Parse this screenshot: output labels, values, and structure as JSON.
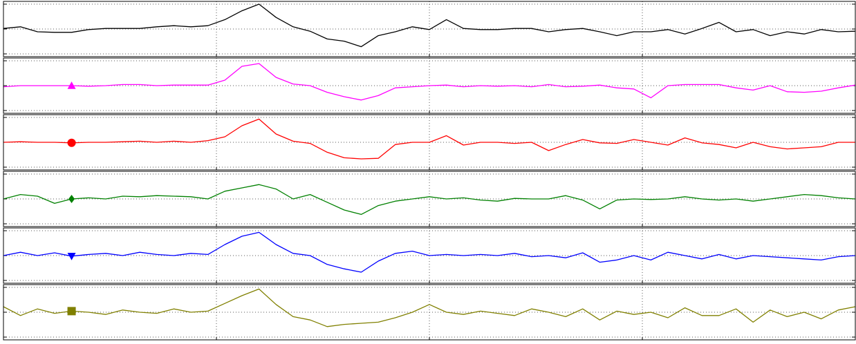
{
  "chart_data": [
    {
      "type": "line",
      "xlim": [
        0,
        100
      ],
      "xticks": [
        0,
        25,
        50,
        75,
        100
      ],
      "ylim": [
        0,
        10
      ],
      "yticks": [
        0.5,
        5,
        9.5
      ],
      "grid": true,
      "x": [
        0,
        2,
        4,
        6,
        8,
        10,
        12,
        14,
        16,
        18,
        20,
        22,
        24,
        26,
        28,
        30,
        32,
        34,
        36,
        38,
        40,
        42,
        44,
        46,
        48,
        50,
        52,
        54,
        56,
        58,
        60,
        62,
        64,
        66,
        68,
        70,
        72,
        74,
        76,
        78,
        80,
        82,
        84,
        86,
        88,
        90,
        92,
        94,
        96,
        98,
        100
      ],
      "series": [
        {
          "color": "#000000",
          "values": [
            5.1,
            5.4,
            4.5,
            4.4,
            4.4,
            4.9,
            5.1,
            5.1,
            5.1,
            5.4,
            5.6,
            5.4,
            5.6,
            6.7,
            8.3,
            9.5,
            7.1,
            5.4,
            4.6,
            3.2,
            2.8,
            1.8,
            3.8,
            4.5,
            5.4,
            4.9,
            6.7,
            5.1,
            4.9,
            4.9,
            5.1,
            5.1,
            4.5,
            4.9,
            5.1,
            4.5,
            3.8,
            4.5,
            4.5,
            4.9,
            4.1,
            5.1,
            6.2,
            4.5,
            4.9,
            3.8,
            4.5,
            4.1,
            4.9,
            4.5,
            4.6
          ]
        }
      ]
    },
    {
      "type": "line",
      "xlim": [
        0,
        100
      ],
      "xticks": [
        0,
        25,
        50,
        75,
        100
      ],
      "ylim": [
        0,
        10
      ],
      "yticks": [
        0.5,
        5,
        9.5
      ],
      "grid": true,
      "x": [
        0,
        2,
        4,
        6,
        8,
        10,
        12,
        14,
        16,
        18,
        20,
        22,
        24,
        26,
        28,
        30,
        32,
        34,
        36,
        38,
        40,
        42,
        44,
        46,
        48,
        50,
        52,
        54,
        56,
        58,
        60,
        62,
        64,
        66,
        68,
        70,
        72,
        74,
        76,
        78,
        80,
        82,
        84,
        86,
        88,
        90,
        92,
        94,
        96,
        98,
        100
      ],
      "marker_x": 8,
      "series": [
        {
          "color": "#ff00ff",
          "marker": "^",
          "values": [
            4.8,
            5.0,
            5.0,
            5.0,
            5.0,
            4.9,
            5.0,
            5.2,
            5.2,
            5.0,
            5.1,
            5.1,
            5.1,
            6.0,
            8.5,
            9.0,
            6.5,
            5.3,
            5.0,
            3.8,
            3.0,
            2.4,
            3.2,
            4.6,
            4.8,
            5.0,
            5.1,
            4.8,
            5.0,
            4.9,
            5.0,
            4.8,
            5.2,
            4.8,
            4.9,
            5.1,
            4.6,
            4.4,
            2.8,
            5.0,
            5.2,
            5.2,
            5.2,
            4.6,
            4.2,
            5.0,
            3.9,
            3.8,
            4.0,
            4.6,
            5.1
          ]
        }
      ]
    },
    {
      "type": "line",
      "xlim": [
        0,
        100
      ],
      "xticks": [
        0,
        25,
        50,
        75,
        100
      ],
      "ylim": [
        0,
        10
      ],
      "yticks": [
        0.5,
        5,
        9.5
      ],
      "grid": true,
      "x": [
        0,
        2,
        4,
        6,
        8,
        10,
        12,
        14,
        16,
        18,
        20,
        22,
        24,
        26,
        28,
        30,
        32,
        34,
        36,
        38,
        40,
        42,
        44,
        46,
        48,
        50,
        52,
        54,
        56,
        58,
        60,
        62,
        64,
        66,
        68,
        70,
        72,
        74,
        76,
        78,
        80,
        82,
        84,
        86,
        88,
        90,
        92,
        94,
        96,
        98,
        100
      ],
      "marker_x": 8,
      "series": [
        {
          "color": "#ff0000",
          "marker": "o",
          "values": [
            5.0,
            5.1,
            5.0,
            5.0,
            4.9,
            5.0,
            5.0,
            5.1,
            5.2,
            5.0,
            5.2,
            5.0,
            5.3,
            6.0,
            8.0,
            9.2,
            6.5,
            5.2,
            4.8,
            3.2,
            2.2,
            2.0,
            2.1,
            4.6,
            5.0,
            5.0,
            6.2,
            4.5,
            5.0,
            5.0,
            4.8,
            5.0,
            3.5,
            4.6,
            5.5,
            4.9,
            4.8,
            5.5,
            5.0,
            4.5,
            5.8,
            4.9,
            4.6,
            4.0,
            5.0,
            4.2,
            3.8,
            4.0,
            4.2,
            5.0,
            5.0
          ]
        }
      ]
    },
    {
      "type": "line",
      "xlim": [
        0,
        100
      ],
      "xticks": [
        0,
        25,
        50,
        75,
        100
      ],
      "ylim": [
        0,
        10
      ],
      "yticks": [
        0.5,
        5,
        9.5
      ],
      "grid": true,
      "x": [
        0,
        2,
        4,
        6,
        8,
        10,
        12,
        14,
        16,
        18,
        20,
        22,
        24,
        26,
        28,
        30,
        32,
        34,
        36,
        38,
        40,
        42,
        44,
        46,
        48,
        50,
        52,
        54,
        56,
        58,
        60,
        62,
        64,
        66,
        68,
        70,
        72,
        74,
        76,
        78,
        80,
        82,
        84,
        86,
        88,
        90,
        92,
        94,
        96,
        98,
        100
      ],
      "marker_x": 8,
      "series": [
        {
          "color": "#008000",
          "marker": "D",
          "values": [
            5.0,
            5.8,
            5.5,
            4.2,
            5.0,
            5.2,
            5.0,
            5.5,
            5.4,
            5.6,
            5.5,
            5.4,
            5.0,
            6.4,
            7.0,
            7.6,
            6.8,
            5.0,
            5.8,
            4.4,
            3.0,
            2.2,
            3.8,
            4.6,
            5.0,
            5.4,
            5.0,
            5.2,
            4.8,
            4.6,
            5.1,
            5.0,
            5.0,
            5.6,
            4.8,
            3.2,
            4.8,
            5.0,
            4.9,
            5.0,
            5.4,
            5.0,
            4.8,
            5.0,
            4.6,
            5.0,
            5.4,
            5.8,
            5.6,
            5.2,
            5.0
          ]
        }
      ]
    },
    {
      "type": "line",
      "xlim": [
        0,
        100
      ],
      "xticks": [
        0,
        25,
        50,
        75,
        100
      ],
      "ylim": [
        0,
        10
      ],
      "yticks": [
        0.5,
        5,
        9.5
      ],
      "grid": true,
      "x": [
        0,
        2,
        4,
        6,
        8,
        10,
        12,
        14,
        16,
        18,
        20,
        22,
        24,
        26,
        28,
        30,
        32,
        34,
        36,
        38,
        40,
        42,
        44,
        46,
        48,
        50,
        52,
        54,
        56,
        58,
        60,
        62,
        64,
        66,
        68,
        70,
        72,
        74,
        76,
        78,
        80,
        82,
        84,
        86,
        88,
        90,
        92,
        94,
        96,
        98,
        100
      ],
      "marker_x": 8,
      "series": [
        {
          "color": "#0000ff",
          "marker": "v",
          "values": [
            5.0,
            5.6,
            5.0,
            5.5,
            4.9,
            5.2,
            5.4,
            5.0,
            5.6,
            5.2,
            5.0,
            5.4,
            5.2,
            7.0,
            8.5,
            9.2,
            7.0,
            5.4,
            5.0,
            3.4,
            2.6,
            2.0,
            4.0,
            5.4,
            5.8,
            5.0,
            5.2,
            5.0,
            5.2,
            5.0,
            5.4,
            4.8,
            5.0,
            4.6,
            5.5,
            3.8,
            4.2,
            5.0,
            4.2,
            5.6,
            5.0,
            4.4,
            5.2,
            4.4,
            5.0,
            4.8,
            4.6,
            4.4,
            4.2,
            4.8,
            5.0
          ]
        }
      ]
    },
    {
      "type": "line",
      "xlim": [
        0,
        100
      ],
      "xticks": [
        0,
        25,
        50,
        75,
        100
      ],
      "ylim": [
        0,
        10
      ],
      "yticks": [
        0.5,
        5,
        9.5
      ],
      "grid": true,
      "x": [
        0,
        2,
        4,
        6,
        8,
        10,
        12,
        14,
        16,
        18,
        20,
        22,
        24,
        26,
        28,
        30,
        32,
        34,
        36,
        38,
        40,
        42,
        44,
        46,
        48,
        50,
        52,
        54,
        56,
        58,
        60,
        62,
        64,
        66,
        68,
        70,
        72,
        74,
        76,
        78,
        80,
        82,
        84,
        86,
        88,
        90,
        92,
        94,
        96,
        98,
        100
      ],
      "marker_x": 8,
      "series": [
        {
          "color": "#808000",
          "marker": "s",
          "values": [
            6.0,
            4.4,
            5.6,
            4.8,
            5.2,
            5.0,
            4.6,
            5.4,
            5.0,
            4.8,
            5.6,
            5.0,
            5.2,
            6.6,
            8.0,
            9.2,
            6.4,
            4.2,
            3.6,
            2.4,
            2.8,
            3.0,
            3.2,
            4.0,
            5.0,
            6.4,
            5.0,
            4.6,
            5.2,
            4.8,
            4.4,
            5.6,
            5.0,
            4.2,
            5.6,
            3.6,
            5.2,
            4.6,
            5.0,
            4.0,
            5.8,
            4.4,
            4.4,
            5.6,
            3.2,
            5.4,
            4.2,
            5.0,
            3.8,
            5.4,
            6.0
          ]
        }
      ]
    }
  ]
}
